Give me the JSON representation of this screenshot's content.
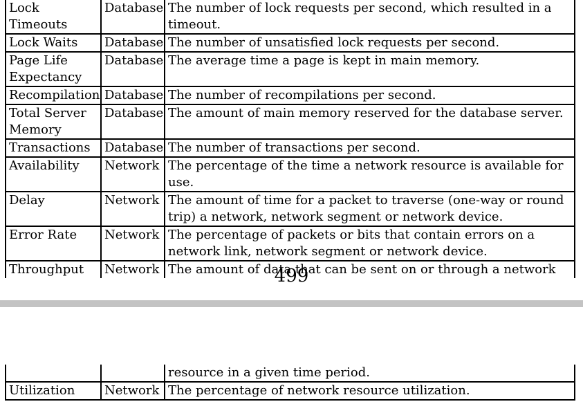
{
  "page_top": {
    "rows": [
      {
        "name": "Lock Timeouts",
        "type": "Database",
        "description": "The number of lock requests per second, which resulted in a timeout."
      },
      {
        "name": "Lock Waits",
        "type": "Database",
        "description": "The number of unsatisfied lock requests per second."
      },
      {
        "name": "Page Life Expectancy",
        "type": "Database",
        "description": "The average time a page is kept in main memory."
      },
      {
        "name": "Recompilations",
        "type": "Database",
        "description": "The number of recompilations per second."
      },
      {
        "name": "Total Server Memory",
        "type": "Database",
        "description": "The amount of main memory reserved for the database server."
      },
      {
        "name": "Transactions",
        "type": "Database",
        "description": "The number of transactions per second."
      },
      {
        "name": "Availability",
        "type": "Network",
        "description": "The percentage of the time a network resource is available for use."
      },
      {
        "name": "Delay",
        "type": "Network",
        "description": "The amount of time for a packet to traverse (one-way or round trip) a network, network segment or network device."
      },
      {
        "name": "Error Rate",
        "type": "Network",
        "description": "The percentage of packets or bits that contain errors on a network link, network segment or network device."
      },
      {
        "name": "Throughput",
        "type": "Network",
        "description": "The amount of data that can be sent on or through a network"
      }
    ]
  },
  "page_number": "499",
  "page_bottom": {
    "rows": [
      {
        "name": "",
        "type": "",
        "description": "resource in a given time period."
      },
      {
        "name": "Utilization",
        "type": "Network",
        "description": "The percentage of network resource utilization."
      }
    ]
  }
}
